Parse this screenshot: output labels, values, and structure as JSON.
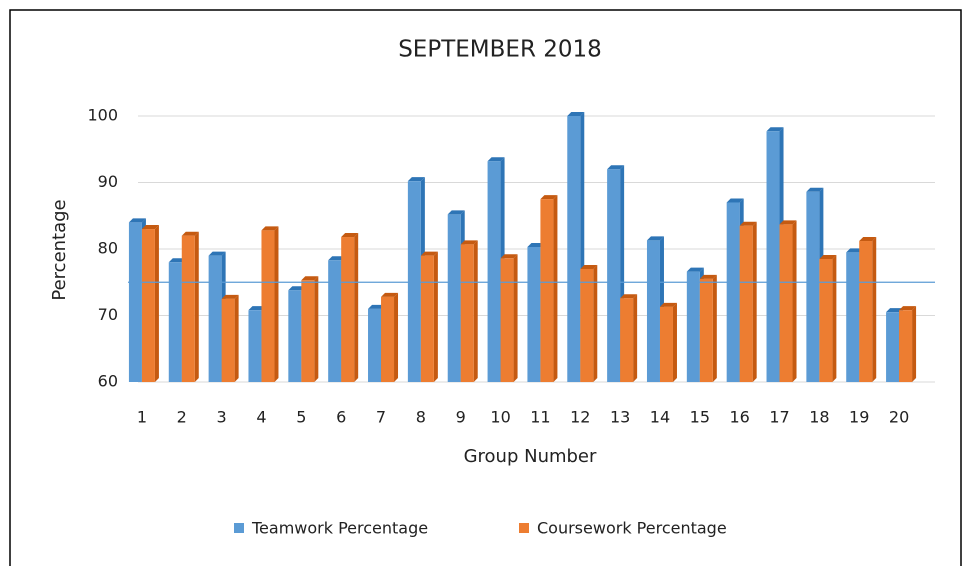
{
  "chart_data": {
    "type": "bar3d",
    "title": "SEPTEMBER 2018",
    "x_label": "Group Number",
    "y_label": "Percentage",
    "categories": [
      "1",
      "2",
      "3",
      "4",
      "5",
      "6",
      "7",
      "8",
      "9",
      "10",
      "11",
      "12",
      "13",
      "14",
      "15",
      "16",
      "17",
      "18",
      "19",
      "20"
    ],
    "series": [
      {
        "name": "Teamwork Percentage",
        "color": "#5b9bd5",
        "side_color": "#2e75b6",
        "values": [
          84,
          78,
          79,
          70.8,
          73.8,
          78.3,
          71,
          90.2,
          85.2,
          93.2,
          80.3,
          100,
          92,
          81.3,
          76.6,
          87,
          97.7,
          88.6,
          79.5,
          70.5
        ]
      },
      {
        "name": "Coursework Percentage",
        "color": "#ed7d31",
        "side_color": "#c55a11",
        "values": [
          83,
          82,
          72.5,
          82.8,
          75.3,
          81.8,
          72.8,
          79,
          80.7,
          78.6,
          87.5,
          77,
          72.6,
          71.3,
          75.5,
          83.5,
          83.7,
          78.5,
          81.2,
          70.8
        ]
      }
    ],
    "reference_value": 75,
    "reference_color": "#5b9bd5",
    "ylim": [
      60,
      100
    ],
    "yticks": [
      60,
      70,
      80,
      90,
      100
    ],
    "grid": true,
    "legend": "bottom"
  }
}
